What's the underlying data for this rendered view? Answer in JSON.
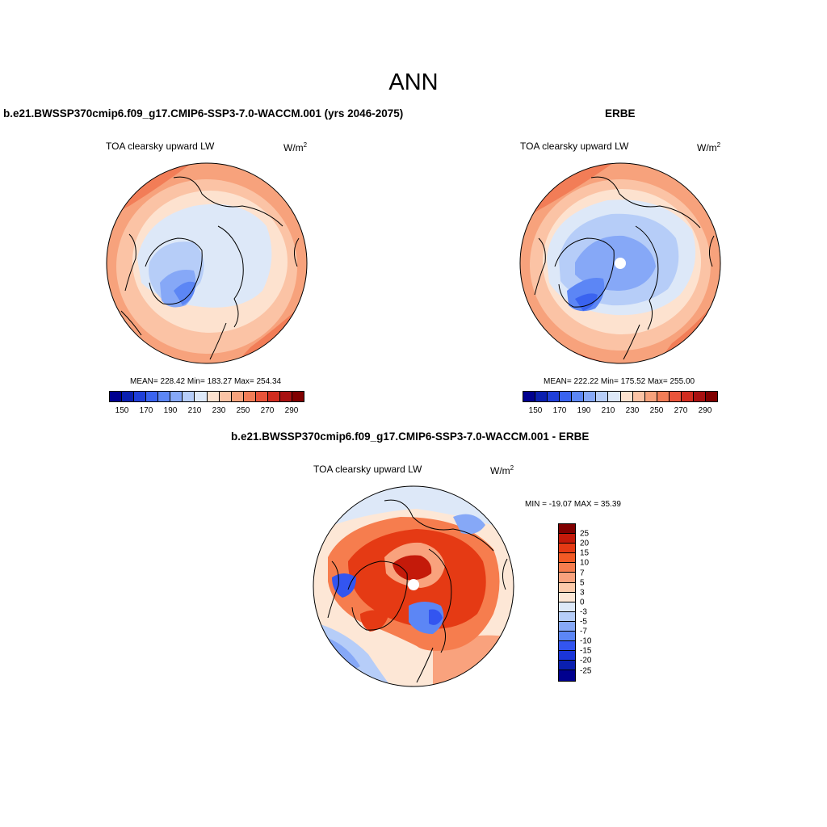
{
  "title": "ANN",
  "panels": [
    {
      "title": "b.e21.BWSSP370cmip6.f09_g17.CMIP6-SSP3-7.0-WACCM.001 (yrs 2046-2075)",
      "variable": "TOA clearsky upward LW",
      "units_base": "W/m",
      "units_exp": "2",
      "stats": "MEAN= 228.42  Min= 183.27  Max= 254.34"
    },
    {
      "title": "ERBE",
      "variable": "TOA clearsky upward LW",
      "units_base": "W/m",
      "units_exp": "2",
      "stats": "MEAN= 222.22  Min= 175.52  Max= 255.00"
    },
    {
      "title": "b.e21.BWSSP370cmip6.f09_g17.CMIP6-SSP3-7.0-WACCM.001 - ERBE",
      "variable": "TOA clearsky upward LW",
      "units_base": "W/m",
      "units_exp": "2",
      "stats": "MIN = -19.07 MAX =  35.39"
    }
  ],
  "abs_colorbar": {
    "colors": [
      "#00008f",
      "#0a1fb0",
      "#1f3fd9",
      "#3a63f0",
      "#5c86f5",
      "#86a8f7",
      "#b6cdf8",
      "#dde8f8",
      "#fde2cf",
      "#fbc3a5",
      "#f7a27c",
      "#f27d57",
      "#e9543a",
      "#d12c1f",
      "#a81010",
      "#800000"
    ],
    "ticks": [
      "150",
      "170",
      "190",
      "210",
      "230",
      "250",
      "270",
      "290"
    ]
  },
  "diff_colorbar": {
    "colors": [
      "#800000",
      "#c41a0a",
      "#e53a14",
      "#f25a25",
      "#f67d4e",
      "#f9a27d",
      "#fccaaa",
      "#fde7d6",
      "#dde8f8",
      "#b6cdf8",
      "#86a8f7",
      "#5c86f5",
      "#3355f0",
      "#1a35d8",
      "#0a1fb0",
      "#00008f"
    ],
    "ticks": [
      "25",
      "20",
      "15",
      "10",
      "7",
      "5",
      "3",
      "0",
      "-3",
      "-5",
      "-7",
      "-10",
      "-15",
      "-20",
      "-25"
    ]
  }
}
